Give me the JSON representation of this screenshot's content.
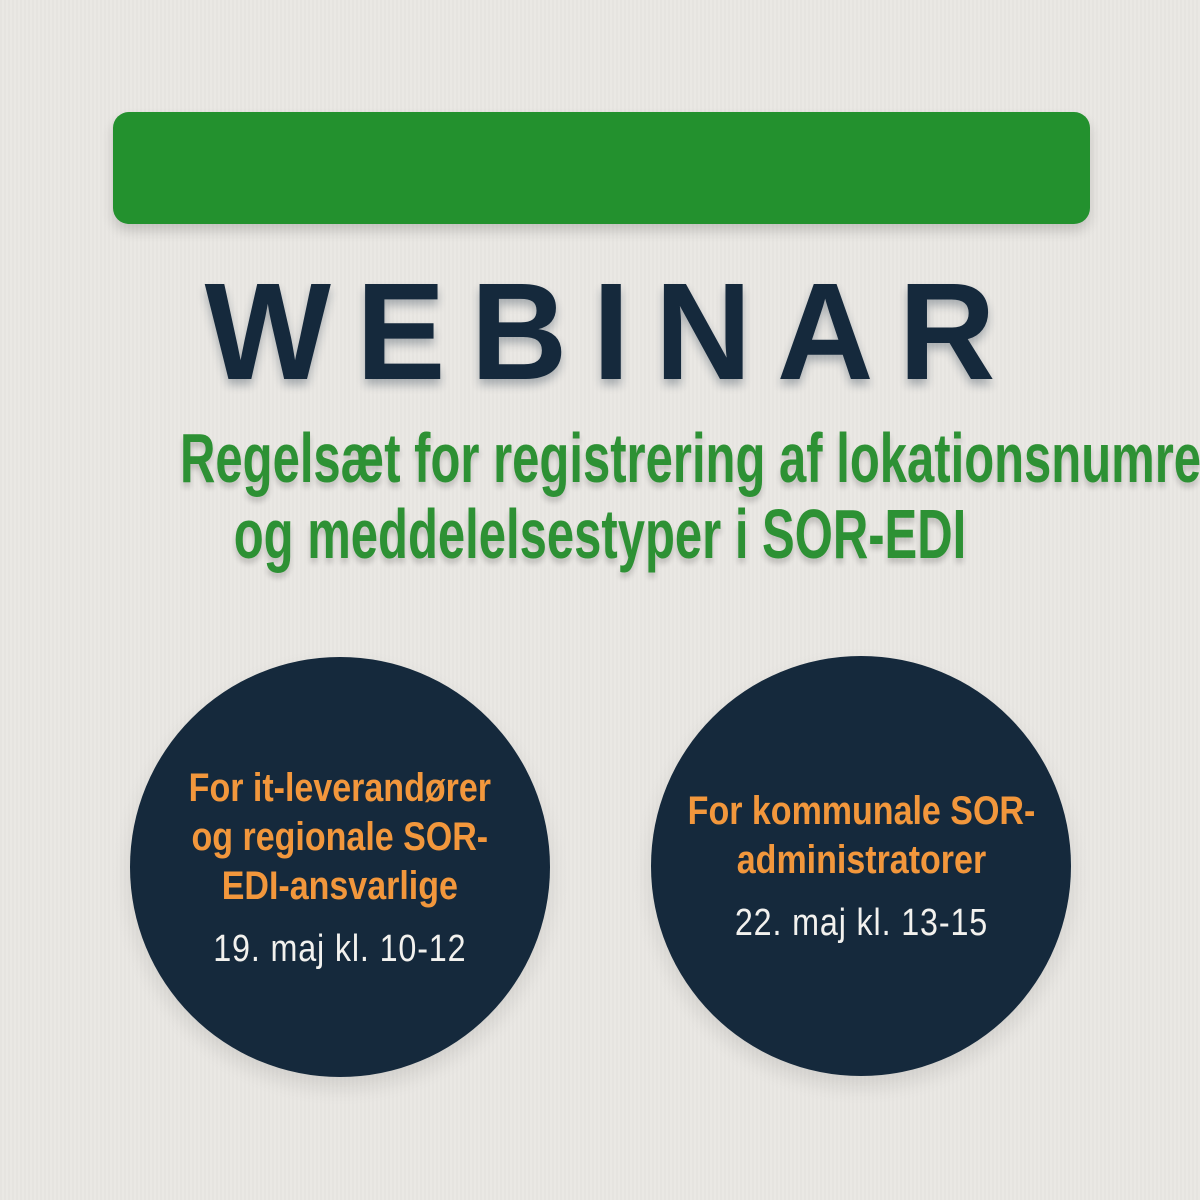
{
  "title": "WEBINAR",
  "subtitle": {
    "line1": "Regelsæt for registrering af lokationsnumre",
    "line2": "og meddelelsestyper i SOR-EDI"
  },
  "sessions": [
    {
      "audience_lines": [
        "For it-leverandører",
        "og regionale SOR-",
        "EDI-ansvarlige"
      ],
      "datetime": "19. maj kl. 10-12"
    },
    {
      "audience_lines": [
        "For kommunale SOR-",
        "administratorer"
      ],
      "datetime": "22. maj kl. 13-15"
    }
  ],
  "colors": {
    "background": "#EAE8E4",
    "banner_green": "#23912E",
    "subtitle_green": "#2D9134",
    "navy": "#15293C",
    "orange": "#F2973C",
    "date_text": "#F2F1EE"
  }
}
